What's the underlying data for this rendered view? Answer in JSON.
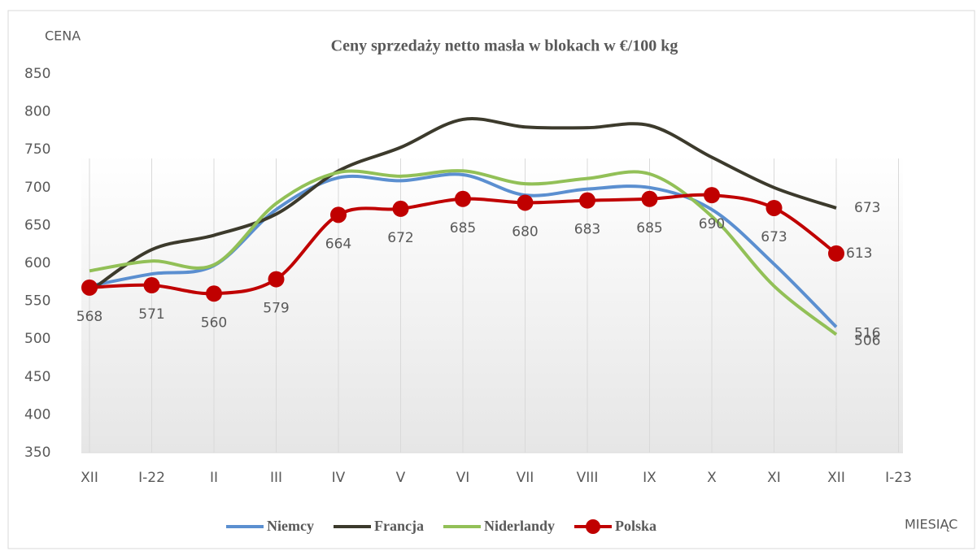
{
  "chart_data": {
    "type": "line",
    "title": "Ceny sprzedaży  netto masła w blokach w €/100 kg",
    "y_label": "CENA",
    "x_label": "MIESIĄC",
    "categories": [
      "XII",
      "I-22",
      "II",
      "III",
      "IV",
      "V",
      "VI",
      "VII",
      "VIII",
      "IX",
      "X",
      "XI",
      "XII",
      "I-23"
    ],
    "ylim": [
      350,
      850
    ],
    "yticks": [
      350,
      400,
      450,
      500,
      550,
      600,
      650,
      700,
      750,
      800,
      850
    ],
    "series": [
      {
        "name": "Niemcy",
        "color": "#5b8fd0",
        "values": [
          570,
          586,
          597,
          671,
          713,
          709,
          717,
          690,
          698,
          700,
          671,
          599,
          516,
          null
        ]
      },
      {
        "name": "Francja",
        "color": "#3c3a2c",
        "values": [
          563,
          618,
          637,
          665,
          722,
          753,
          790,
          780,
          779,
          782,
          740,
          700,
          673,
          null
        ]
      },
      {
        "name": "Niderlandy",
        "color": "#92c057",
        "values": [
          590,
          603,
          598,
          679,
          720,
          715,
          722,
          705,
          712,
          718,
          662,
          570,
          506,
          null
        ]
      },
      {
        "name": "Polska",
        "color": "#c00000",
        "markers": true,
        "values": [
          568,
          571,
          560,
          579,
          664,
          672,
          685,
          680,
          683,
          685,
          690,
          673,
          613,
          null
        ]
      }
    ]
  }
}
